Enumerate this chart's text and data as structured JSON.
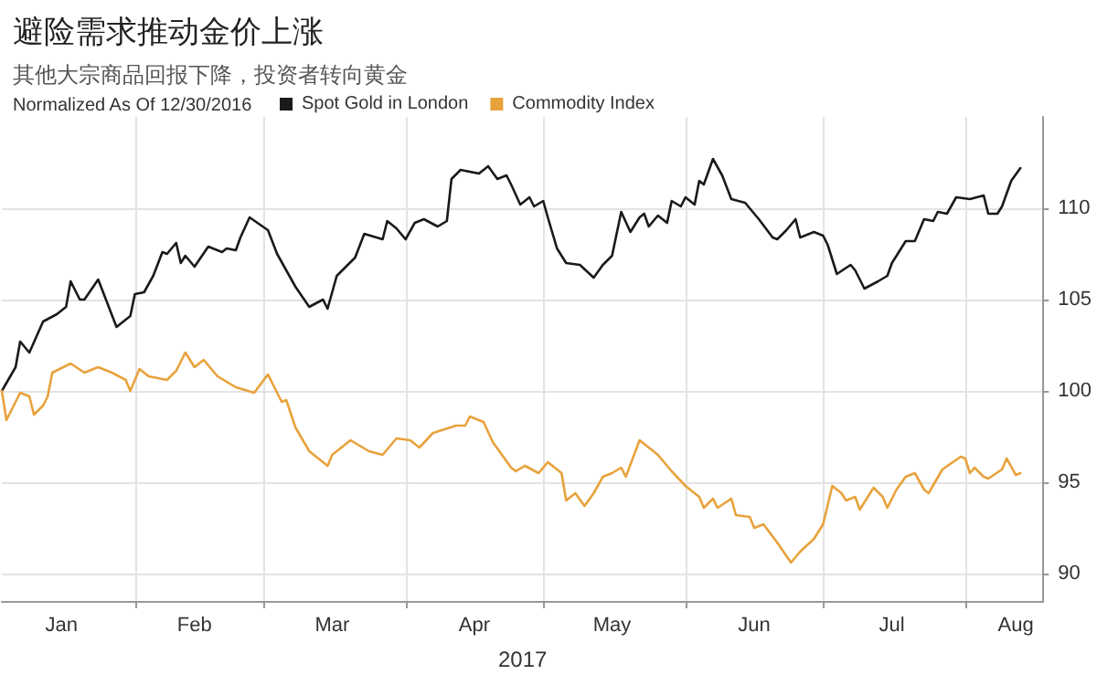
{
  "chart_data": {
    "type": "line",
    "title": "避险需求推动金价上涨",
    "subtitle": "其他大宗商品回报下降，投资者转向黄金",
    "legend_title": "Normalized As Of 12/30/2016",
    "xlabel": "2017",
    "series": [
      {
        "name": "Spot Gold in London",
        "color": "#1a1a1a",
        "x": [
          "2017-01-03",
          "2017-01-06",
          "2017-01-07",
          "2017-01-09",
          "2017-01-12",
          "2017-01-15",
          "2017-01-17",
          "2017-01-18",
          "2017-01-20",
          "2017-01-21",
          "2017-01-24",
          "2017-01-28",
          "2017-01-31",
          "2017-02-01",
          "2017-02-03",
          "2017-02-05",
          "2017-02-07",
          "2017-02-08",
          "2017-02-10",
          "2017-02-11",
          "2017-02-12",
          "2017-02-14",
          "2017-02-17",
          "2017-02-20",
          "2017-02-21",
          "2017-02-23",
          "2017-02-24",
          "2017-02-26",
          "2017-03-02",
          "2017-03-04",
          "2017-03-08",
          "2017-03-11",
          "2017-03-14",
          "2017-03-15",
          "2017-03-17",
          "2017-03-21",
          "2017-03-23",
          "2017-03-27",
          "2017-03-28",
          "2017-03-30",
          "2017-04-01",
          "2017-04-03",
          "2017-04-05",
          "2017-04-08",
          "2017-04-10",
          "2017-04-11",
          "2017-04-13",
          "2017-04-17",
          "2017-04-19",
          "2017-04-21",
          "2017-04-23",
          "2017-04-24",
          "2017-04-26",
          "2017-04-28",
          "2017-04-29",
          "2017-05-01",
          "2017-05-02",
          "2017-05-04",
          "2017-05-06",
          "2017-05-09",
          "2017-05-12",
          "2017-05-14",
          "2017-05-16",
          "2017-05-18",
          "2017-05-20",
          "2017-05-22",
          "2017-05-23",
          "2017-05-24",
          "2017-05-26",
          "2017-05-28",
          "2017-05-29",
          "2017-05-31",
          "2017-06-01",
          "2017-06-03",
          "2017-06-04",
          "2017-06-05",
          "2017-06-07",
          "2017-06-09",
          "2017-06-11",
          "2017-06-14",
          "2017-06-17",
          "2017-06-20",
          "2017-06-21",
          "2017-06-23",
          "2017-06-25",
          "2017-06-26",
          "2017-06-29",
          "2017-07-01",
          "2017-07-02",
          "2017-07-04",
          "2017-07-07",
          "2017-07-08",
          "2017-07-10",
          "2017-07-13",
          "2017-07-15",
          "2017-07-16",
          "2017-07-19",
          "2017-07-21",
          "2017-07-23",
          "2017-07-25",
          "2017-07-26",
          "2017-07-28",
          "2017-07-30",
          "2017-08-02",
          "2017-08-05",
          "2017-08-06",
          "2017-08-08",
          "2017-08-09",
          "2017-08-11",
          "2017-08-13"
        ],
        "values": [
          100,
          101.3,
          102.7,
          102.1,
          103.8,
          104.2,
          104.6,
          106.0,
          105.0,
          105.0,
          106.1,
          103.5,
          104.1,
          105.3,
          105.4,
          106.3,
          107.6,
          107.5,
          108.1,
          107.0,
          107.4,
          106.8,
          107.9,
          107.6,
          107.8,
          107.7,
          108.4,
          109.5,
          108.8,
          107.5,
          105.7,
          104.6,
          105.0,
          104.5,
          106.3,
          107.3,
          108.6,
          108.3,
          109.3,
          108.9,
          108.3,
          109.2,
          109.4,
          109.0,
          109.3,
          111.6,
          112.1,
          111.9,
          112.3,
          111.6,
          111.8,
          111.3,
          110.2,
          110.6,
          110.1,
          110.4,
          109.5,
          107.8,
          107.0,
          106.9,
          106.2,
          106.9,
          107.4,
          109.8,
          108.7,
          109.5,
          109.7,
          109.0,
          109.6,
          109.2,
          110.4,
          110.1,
          110.6,
          110.2,
          111.5,
          111.3,
          112.7,
          111.8,
          110.5,
          110.3,
          109.4,
          108.4,
          108.3,
          108.8,
          109.4,
          108.4,
          108.7,
          108.5,
          108.0,
          106.4,
          106.9,
          106.6,
          105.6,
          106.0,
          106.3,
          107.0,
          108.2,
          108.2,
          109.4,
          109.3,
          109.8,
          109.7,
          110.6,
          110.5,
          110.7,
          109.7,
          109.7,
          110.1,
          111.5,
          112.2
        ]
      },
      {
        "name": "Commodity Index",
        "color": "#e8a23c",
        "x": [
          "2017-01-03",
          "2017-01-04",
          "2017-01-06",
          "2017-01-07",
          "2017-01-09",
          "2017-01-10",
          "2017-01-12",
          "2017-01-13",
          "2017-01-14",
          "2017-01-18",
          "2017-01-21",
          "2017-01-24",
          "2017-01-27",
          "2017-01-30",
          "2017-01-31",
          "2017-02-02",
          "2017-02-04",
          "2017-02-08",
          "2017-02-10",
          "2017-02-12",
          "2017-02-14",
          "2017-02-16",
          "2017-02-19",
          "2017-02-23",
          "2017-02-27",
          "2017-03-02",
          "2017-03-05",
          "2017-03-06",
          "2017-03-08",
          "2017-03-11",
          "2017-03-13",
          "2017-03-15",
          "2017-03-16",
          "2017-03-20",
          "2017-03-24",
          "2017-03-27",
          "2017-03-30",
          "2017-04-02",
          "2017-04-04",
          "2017-04-07",
          "2017-04-12",
          "2017-04-14",
          "2017-04-15",
          "2017-04-18",
          "2017-04-20",
          "2017-04-22",
          "2017-04-24",
          "2017-04-25",
          "2017-04-27",
          "2017-04-30",
          "2017-05-02",
          "2017-05-04",
          "2017-05-05",
          "2017-05-06",
          "2017-05-08",
          "2017-05-10",
          "2017-05-12",
          "2017-05-14",
          "2017-05-16",
          "2017-05-18",
          "2017-05-19",
          "2017-05-22",
          "2017-05-24",
          "2017-05-26",
          "2017-05-28",
          "2017-05-29",
          "2017-06-01",
          "2017-06-04",
          "2017-06-05",
          "2017-06-07",
          "2017-06-08",
          "2017-06-11",
          "2017-06-12",
          "2017-06-15",
          "2017-06-16",
          "2017-06-18",
          "2017-06-21",
          "2017-06-24",
          "2017-06-26",
          "2017-06-29",
          "2017-07-01",
          "2017-07-03",
          "2017-07-05",
          "2017-07-06",
          "2017-07-08",
          "2017-07-09",
          "2017-07-12",
          "2017-07-14",
          "2017-07-15",
          "2017-07-17",
          "2017-07-19",
          "2017-07-21",
          "2017-07-23",
          "2017-07-24",
          "2017-07-27",
          "2017-07-31",
          "2017-08-01",
          "2017-08-02",
          "2017-08-03",
          "2017-08-05",
          "2017-08-06",
          "2017-08-09",
          "2017-08-10",
          "2017-08-12",
          "2017-08-13"
        ],
        "values": [
          100,
          98.4,
          99.4,
          99.9,
          99.7,
          98.7,
          99.2,
          99.7,
          101.0,
          101.5,
          101.0,
          101.3,
          101.0,
          100.6,
          100.0,
          101.2,
          100.8,
          100.6,
          101.1,
          102.1,
          101.3,
          101.7,
          100.8,
          100.2,
          99.9,
          100.9,
          99.4,
          99.5,
          98.0,
          96.7,
          96.3,
          95.9,
          96.5,
          97.3,
          96.7,
          96.5,
          97.4,
          97.3,
          96.9,
          97.7,
          98.1,
          98.1,
          98.6,
          98.3,
          97.2,
          96.5,
          95.8,
          95.6,
          95.9,
          95.5,
          96.1,
          95.7,
          95.5,
          94.0,
          94.4,
          93.7,
          94.4,
          95.3,
          95.5,
          95.8,
          95.3,
          97.3,
          96.9,
          96.5,
          95.9,
          95.6,
          94.8,
          94.2,
          93.6,
          94.1,
          93.6,
          94.1,
          93.2,
          93.1,
          92.5,
          92.7,
          91.7,
          90.6,
          91.2,
          91.9,
          92.7,
          94.8,
          94.4,
          94.0,
          94.2,
          93.5,
          94.7,
          94.2,
          93.6,
          94.6,
          95.3,
          95.5,
          94.6,
          94.4,
          95.7,
          96.4,
          96.3,
          95.5,
          95.8,
          95.3,
          95.2,
          95.7,
          96.3,
          95.4,
          95.5
        ]
      }
    ],
    "xlim": [
      "2017-01-03",
      "2017-08-18"
    ],
    "xticks": [
      {
        "value": "2017-02-01",
        "label": null
      },
      {
        "value": "2017-03-01",
        "label": null
      },
      {
        "value": "2017-04-01",
        "label": null
      },
      {
        "value": "2017-05-01",
        "label": null
      },
      {
        "value": "2017-06-01",
        "label": null
      },
      {
        "value": "2017-07-01",
        "label": null
      },
      {
        "value": "2017-08-01",
        "label": null
      },
      {
        "value": "2017-01-16",
        "label": "Jan"
      },
      {
        "value": "2017-02-14",
        "label": "Feb"
      },
      {
        "value": "2017-03-16",
        "label": "Mar"
      },
      {
        "value": "2017-04-16",
        "label": "Apr"
      },
      {
        "value": "2017-05-16",
        "label": "May"
      },
      {
        "value": "2017-06-16",
        "label": "Jun"
      },
      {
        "value": "2017-07-16",
        "label": "Jul"
      },
      {
        "value": "2017-08-12",
        "label": "Aug"
      }
    ],
    "ylim": [
      88.5,
      115
    ],
    "yticks": [
      90,
      95,
      100,
      105,
      110
    ],
    "grid": true,
    "legend": "top left",
    "marker": "none",
    "line_style": "solid"
  }
}
